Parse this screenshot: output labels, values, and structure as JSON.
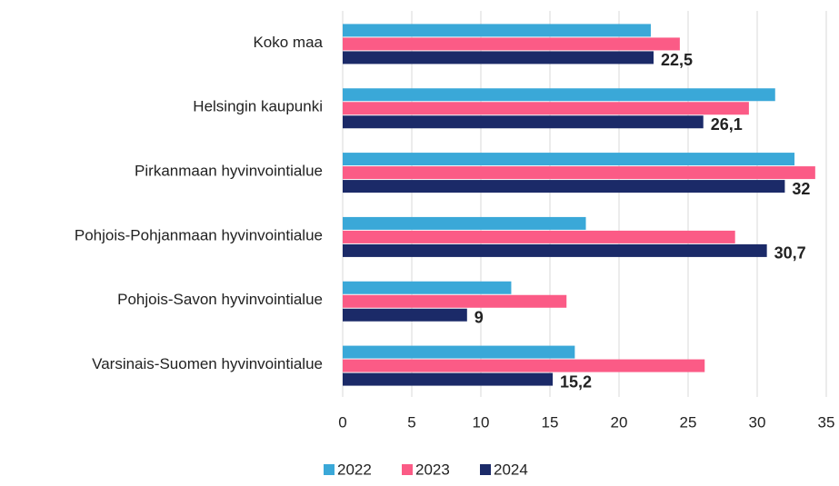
{
  "chart_data": {
    "type": "hbar",
    "categories": [
      "Koko maa",
      "Helsingin kaupunki",
      "Pirkanmaan hyvinvointialue",
      "Pohjois-Pohjanmaan hyvinvointialue",
      "Pohjois-Savon hyvinvointialue",
      "Varsinais-Suomen hyvinvointialue"
    ],
    "series": [
      {
        "name": "2022",
        "color": "#3aa8d8",
        "values": [
          22.3,
          31.3,
          32.7,
          17.6,
          12.2,
          16.8
        ]
      },
      {
        "name": "2023",
        "color": "#fb5b86",
        "values": [
          24.4,
          29.4,
          34.2,
          28.4,
          16.2,
          26.2
        ]
      },
      {
        "name": "2024",
        "color": "#1b2a68",
        "values": [
          22.5,
          26.1,
          32,
          30.7,
          9,
          15.2
        ],
        "value_labels": [
          "22,5",
          "26,1",
          "32",
          "30,7",
          "9",
          "15,2"
        ]
      }
    ],
    "xlim": [
      0,
      35
    ],
    "xticks": [
      0,
      5,
      10,
      15,
      20,
      25,
      30,
      35
    ],
    "grid": true,
    "legend": "bottom"
  }
}
